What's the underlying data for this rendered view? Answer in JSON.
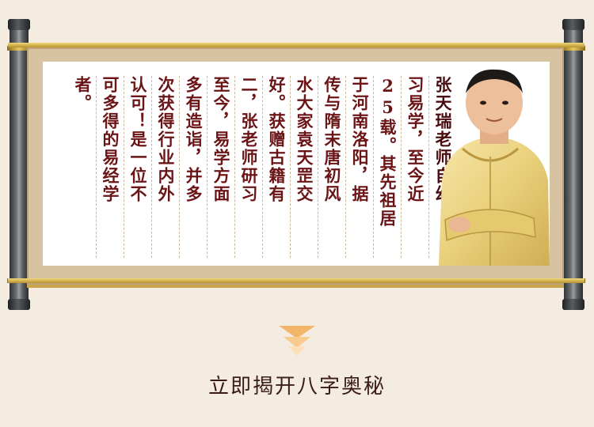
{
  "scroll": {
    "columns": [
      "张天瑞老师自幼",
      "习易学，至今近",
      "25载。其先祖居",
      "于河南洛阳，据",
      "传与隋末唐初风",
      "水大家袁天罡交",
      "好。获赠古籍有",
      "二，张老师研习",
      "至今，易学方面",
      "多有造诣，并多",
      "次获得行业内外",
      "认可！是一位不",
      "可多得的易经学",
      "者。"
    ],
    "portrait_icon": "teacher-portrait"
  },
  "cta": {
    "label": "立即揭开八字奥秘"
  },
  "colors": {
    "text": "#6b1416",
    "gold": "#c9a64b",
    "accent": "#f0b866"
  }
}
